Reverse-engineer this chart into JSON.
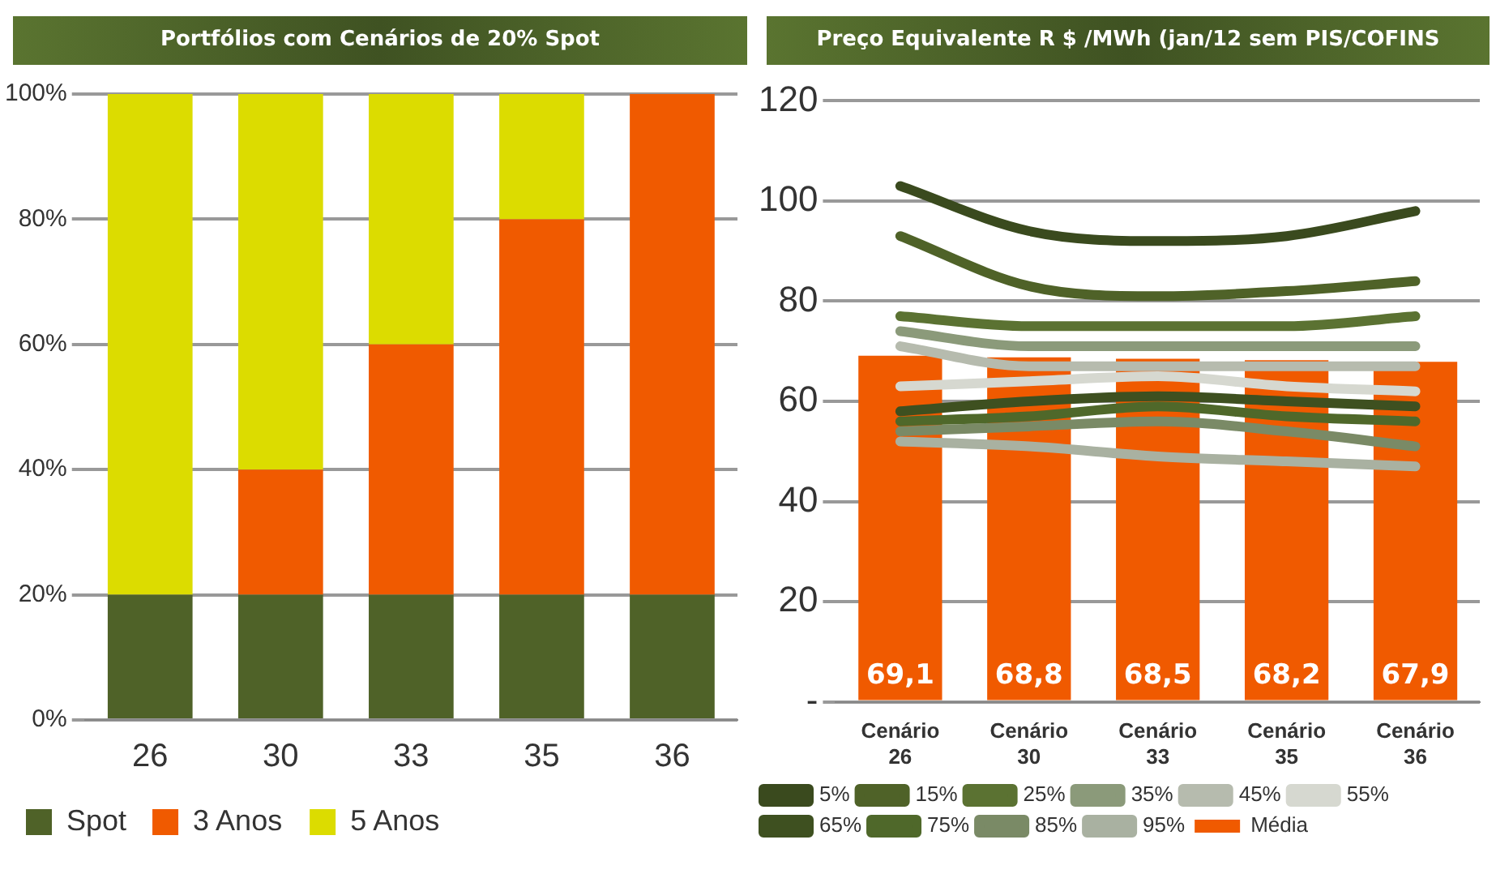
{
  "chart_data": [
    {
      "type": "bar",
      "title": "Portfólios com Cenários de 20% Spot",
      "categories": [
        "26",
        "30",
        "33",
        "35",
        "36"
      ],
      "stacked": true,
      "series": [
        {
          "name": "Spot",
          "color": "#4f6228",
          "values": [
            20,
            20,
            20,
            20,
            20
          ]
        },
        {
          "name": "3 Anos",
          "color": "#f05a00",
          "values": [
            0,
            20,
            40,
            60,
            80
          ]
        },
        {
          "name": "5 Anos",
          "color": "#dcdc00",
          "values": [
            80,
            60,
            40,
            20,
            0
          ]
        }
      ],
      "ylim": [
        0,
        100
      ],
      "yticks": [
        {
          "value": 0,
          "label": "0%"
        },
        {
          "value": 20,
          "label": "20%"
        },
        {
          "value": 40,
          "label": "40%"
        },
        {
          "value": 60,
          "label": "60%"
        },
        {
          "value": 80,
          "label": "80%"
        },
        {
          "value": 100,
          "label": "100%"
        }
      ],
      "grid": "y",
      "legend": "bottom"
    },
    {
      "type": "bar",
      "title": "Preço Equivalente R $ /MWh (jan/12 sem PIS/COFINS",
      "categories": [
        "Cenário 26",
        "Cenário 30",
        "Cenário 33",
        "Cenário 35",
        "Cenário 36"
      ],
      "series": [
        {
          "name": "Média",
          "type": "bar",
          "color": "#f05a00",
          "values": [
            69.1,
            68.8,
            68.5,
            68.2,
            67.9
          ],
          "value_labels": [
            "69,1",
            "68,8",
            "68,5",
            "68,2",
            "67,9"
          ]
        },
        {
          "name": "5%",
          "type": "line",
          "color": "#3a4a1e",
          "values": [
            103,
            94,
            92,
            93,
            98
          ]
        },
        {
          "name": "15%",
          "type": "line",
          "color": "#4f6228",
          "values": [
            93,
            83,
            81,
            82,
            84
          ]
        },
        {
          "name": "25%",
          "type": "line",
          "color": "#5b7232",
          "values": [
            77,
            75,
            75,
            75,
            77
          ]
        },
        {
          "name": "35%",
          "type": "line",
          "color": "#8b9a7a",
          "values": [
            74,
            71,
            71,
            71,
            71
          ]
        },
        {
          "name": "45%",
          "type": "line",
          "color": "#b6bbae",
          "values": [
            71,
            67,
            67,
            67,
            67
          ]
        },
        {
          "name": "55%",
          "type": "line",
          "color": "#d6d8d0",
          "values": [
            63,
            64,
            65,
            63,
            62
          ]
        },
        {
          "name": "65%",
          "type": "line",
          "color": "#3e5020",
          "values": [
            58,
            60,
            61,
            60,
            59
          ]
        },
        {
          "name": "75%",
          "type": "line",
          "color": "#4f682a",
          "values": [
            56,
            57,
            59,
            57,
            56
          ]
        },
        {
          "name": "85%",
          "type": "line",
          "color": "#7a8a66",
          "values": [
            54,
            55,
            56,
            54,
            51
          ]
        },
        {
          "name": "95%",
          "type": "line",
          "color": "#a9b1a1",
          "values": [
            52,
            51,
            49,
            48,
            47
          ]
        }
      ],
      "ylim": [
        0,
        120
      ],
      "yticks": [
        {
          "value": 0,
          "label": "-"
        },
        20,
        40,
        60,
        80,
        100,
        120
      ],
      "grid": "y",
      "legend": "bottom",
      "marker": "none"
    }
  ]
}
